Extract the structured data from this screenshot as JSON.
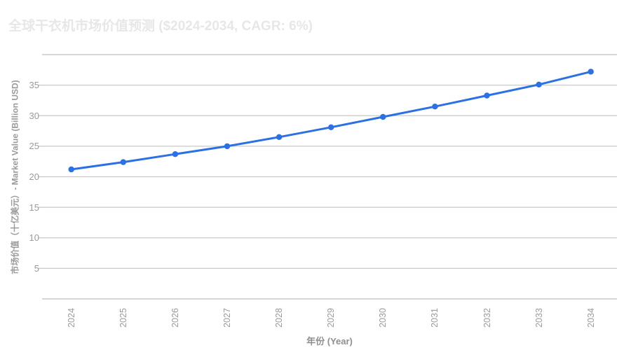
{
  "chart": {
    "title": "全球干衣机市场价值预测 ($2024-2034, CAGR: 6%)",
    "xlabel": "年份 (Year)",
    "ylabel": "市场价值（十亿美元）- Market Value (Billion USD)",
    "colors": {
      "line": "#2b70e4",
      "marker": "#2b70e4",
      "grid": "#c9c9c9",
      "axis_line": "#bdbdbd",
      "tick_text": "#9b9b9b",
      "axis_title_text": "#8f8f8f",
      "chart_title_text": "#e7e7e7",
      "background": "#ffffff"
    }
  },
  "chart_data": {
    "type": "line",
    "title": "全球干衣机市场价值预测 ($2024-2034, CAGR: 6%)",
    "xlabel": "年份 (Year)",
    "ylabel": "市场价值（十亿美元）- Market Value (Billion USD)",
    "categories": [
      "2024",
      "2025",
      "2026",
      "2027",
      "2028",
      "2029",
      "2030",
      "2031",
      "2032",
      "2033",
      "2034"
    ],
    "series": [
      {
        "name": "市场价值 - Market Value (Billion USD)",
        "values": [
          21.2,
          22.4,
          23.7,
          25.0,
          26.5,
          28.1,
          29.8,
          31.5,
          33.3,
          35.1,
          37.2
        ]
      }
    ],
    "ylim": [
      0,
      40
    ],
    "ytick_step": 5,
    "labeled_yticks": [
      5,
      10,
      15,
      20,
      25,
      30,
      35
    ],
    "x_tick_rotation": -90,
    "grid": true,
    "legend": false,
    "marker": "circle"
  }
}
